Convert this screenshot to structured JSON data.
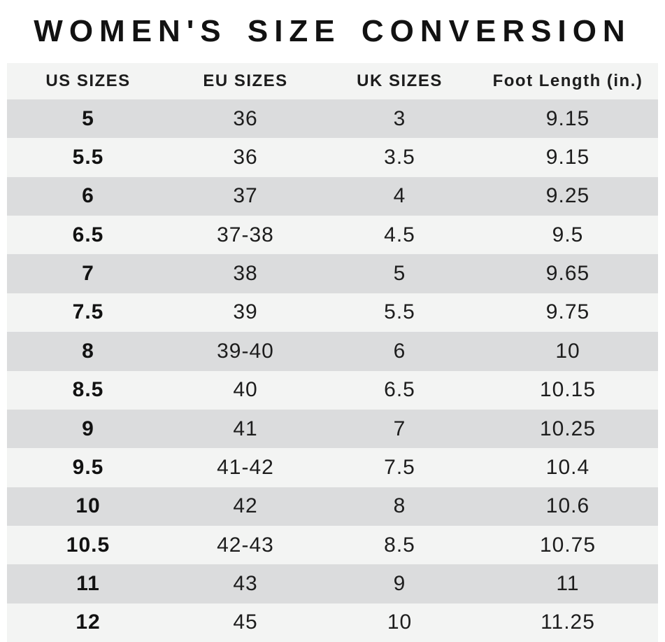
{
  "title": "WOMEN'S SIZE CONVERSION",
  "colors": {
    "row_dark": "#dbdcdd",
    "row_light": "#f3f4f3",
    "header_bg": "#f3f4f3",
    "text": "#1d1d1d",
    "text_strong": "#121212"
  },
  "chart_data": {
    "type": "table",
    "title": "WOMEN'S SIZE CONVERSION",
    "columns": [
      "US SIZES",
      "EU SIZES",
      "UK SIZES",
      "Foot Length (in.)"
    ],
    "rows": [
      [
        "5",
        "36",
        "3",
        "9.15"
      ],
      [
        "5.5",
        "36",
        "3.5",
        "9.15"
      ],
      [
        "6",
        "37",
        "4",
        "9.25"
      ],
      [
        "6.5",
        "37-38",
        "4.5",
        "9.5"
      ],
      [
        "7",
        "38",
        "5",
        "9.65"
      ],
      [
        "7.5",
        "39",
        "5.5",
        "9.75"
      ],
      [
        "8",
        "39-40",
        "6",
        "10"
      ],
      [
        "8.5",
        "40",
        "6.5",
        "10.15"
      ],
      [
        "9",
        "41",
        "7",
        "10.25"
      ],
      [
        "9.5",
        "41-42",
        "7.5",
        "10.4"
      ],
      [
        "10",
        "42",
        "8",
        "10.6"
      ],
      [
        "10.5",
        "42-43",
        "8.5",
        "10.75"
      ],
      [
        "11",
        "43",
        "9",
        "11"
      ],
      [
        "12",
        "45",
        "10",
        "11.25"
      ]
    ],
    "layout": {
      "striped_rows": true,
      "first_column_bold": true,
      "grid": false
    }
  }
}
